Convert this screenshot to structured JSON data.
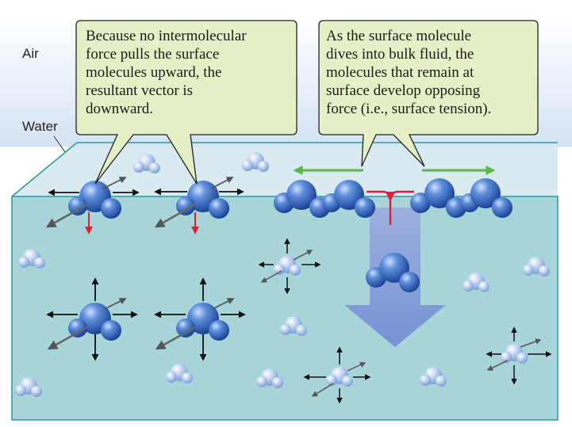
{
  "labels": {
    "air": "Air",
    "water": "Water"
  },
  "callouts": {
    "left": {
      "lines": [
        "Because no intermolecular",
        "force pulls the surface",
        "molecules upward, the",
        "resultant vector is",
        "downward."
      ]
    },
    "right": {
      "lines": [
        "As the surface molecule",
        "dives into bulk fluid, the",
        "molecules that remain at",
        "surface develop opposing",
        "force (i.e., surface tension)."
      ]
    }
  },
  "colors": {
    "callout_fill": "#e6f0c6",
    "water_top": "#cfe6ec",
    "water_front": "#a6d3d8",
    "edge": "#2a9a9a",
    "molecule_dark": "#2f63b8",
    "molecule_light": "#a8c4ec",
    "arrow_red": "#e0203a",
    "arrow_green": "#5ab848",
    "big_arrow": "#7f95d6"
  }
}
